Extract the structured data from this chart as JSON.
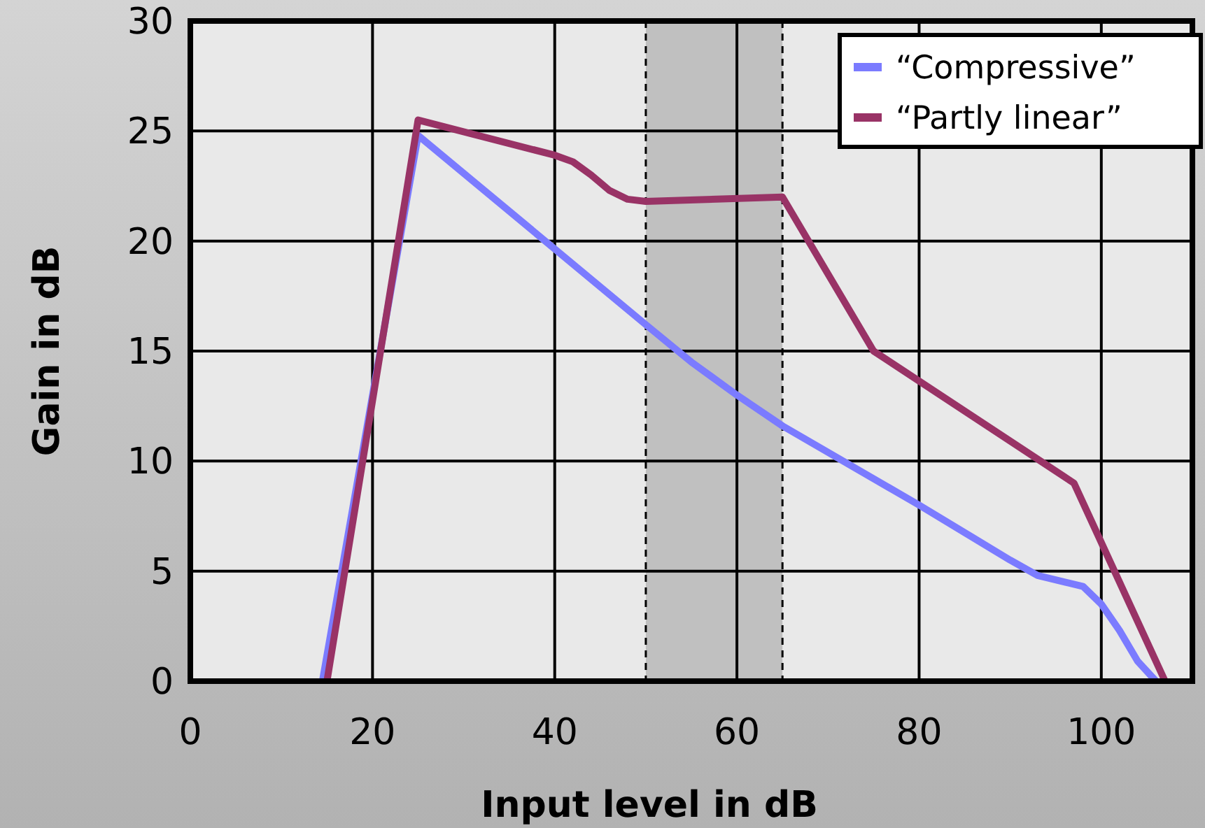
{
  "chart_data": {
    "type": "line",
    "xlabel": "Input level in dB",
    "ylabel": "Gain in dB",
    "xlim": [
      0,
      110
    ],
    "xticks": [
      0,
      20,
      40,
      60,
      80,
      100
    ],
    "ylim": [
      0,
      30
    ],
    "yticks": [
      0,
      5,
      10,
      15,
      20,
      25,
      30
    ],
    "grid": true,
    "legend": "top right",
    "marker": "none",
    "line_style": "solid",
    "bands": [
      {
        "axis": "x",
        "from": 50,
        "to": 65,
        "color": "#c0c0c0"
      }
    ],
    "ref_lines": [
      {
        "axis": "x",
        "value": 50,
        "line_style": "dashed"
      },
      {
        "axis": "x",
        "value": 65,
        "line_style": "dashed"
      }
    ],
    "series": [
      {
        "name": "“Compressive”",
        "color": "#7b7bff",
        "x": [
          14.5,
          25,
          50,
          55,
          60,
          65,
          80,
          90,
          93,
          96,
          98,
          100,
          102,
          104,
          106
        ],
        "values": [
          0,
          24.8,
          16.2,
          14.5,
          13,
          11.6,
          8,
          5.5,
          4.8,
          4.5,
          4.3,
          3.5,
          2.3,
          0.9,
          0
        ]
      },
      {
        "name": "“Partly linear”",
        "color": "#993366",
        "x": [
          15,
          25,
          40,
          42,
          44,
          46,
          48,
          50,
          65,
          75,
          97,
          107
        ],
        "values": [
          0,
          25.5,
          23.9,
          23.6,
          23,
          22.3,
          21.9,
          21.8,
          22,
          15,
          9,
          0
        ]
      }
    ]
  }
}
